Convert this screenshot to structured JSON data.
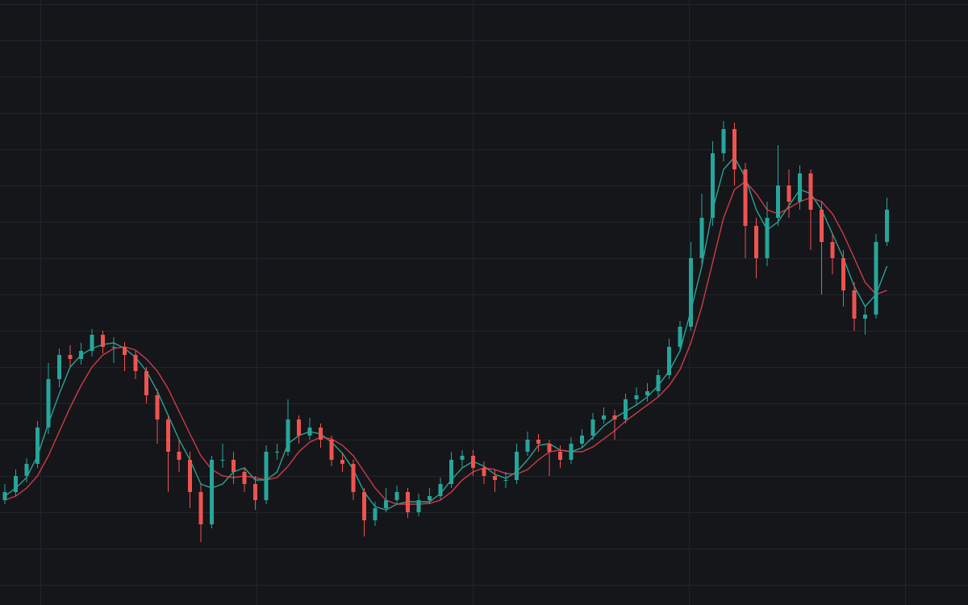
{
  "chart_data": {
    "type": "candlestick",
    "categories": [
      null,
      null,
      null,
      null,
      null,
      null,
      null,
      null,
      null,
      null,
      null,
      null,
      null,
      null,
      null,
      null,
      null,
      null,
      null,
      null,
      null,
      null,
      null,
      null,
      null,
      null,
      null,
      null,
      null,
      null,
      null,
      null,
      null,
      null,
      null,
      null,
      null,
      null,
      null,
      null,
      null,
      null,
      null,
      null,
      null,
      null,
      null,
      null,
      null,
      null,
      null,
      null,
      null,
      null,
      null,
      null,
      null,
      null,
      null,
      null,
      null,
      null,
      null,
      null,
      null,
      null,
      null,
      null,
      null,
      null,
      null,
      null,
      null,
      null,
      null,
      null,
      null,
      null,
      null,
      null,
      null,
      null
    ],
    "open": [
      130,
      140,
      160,
      175,
      220,
      280,
      310,
      305,
      315,
      335,
      320,
      320,
      310,
      290,
      260,
      230,
      190,
      180,
      140,
      100,
      180,
      180,
      165,
      150,
      130,
      190,
      190,
      230,
      210,
      220,
      205,
      180,
      175,
      140,
      105,
      120,
      130,
      140,
      115,
      130,
      135,
      150,
      180,
      185,
      170,
      160,
      155,
      155,
      190,
      205,
      200,
      190,
      180,
      200,
      210,
      230,
      235,
      230,
      255,
      260,
      265,
      285,
      320,
      345,
      430,
      480,
      560,
      590,
      540,
      470,
      430,
      480,
      520,
      500,
      535,
      490,
      450,
      430,
      390,
      355,
      360,
      450
    ],
    "high": [
      150,
      168,
      182,
      228,
      300,
      318,
      322,
      325,
      342,
      340,
      332,
      326,
      315,
      295,
      268,
      235,
      205,
      190,
      150,
      185,
      200,
      190,
      170,
      160,
      198,
      200,
      255,
      235,
      232,
      225,
      210,
      188,
      180,
      145,
      128,
      145,
      148,
      145,
      138,
      145,
      158,
      190,
      192,
      192,
      178,
      168,
      165,
      200,
      215,
      212,
      205,
      198,
      208,
      218,
      238,
      245,
      242,
      262,
      270,
      275,
      292,
      330,
      352,
      450,
      510,
      575,
      600,
      598,
      548,
      480,
      500,
      570,
      540,
      545,
      540,
      500,
      460,
      440,
      400,
      370,
      460,
      505
    ],
    "low": [
      125,
      135,
      152,
      170,
      212,
      270,
      296,
      298,
      308,
      312,
      300,
      290,
      280,
      250,
      200,
      140,
      165,
      120,
      78,
      95,
      170,
      150,
      140,
      118,
      125,
      180,
      185,
      200,
      205,
      195,
      172,
      165,
      130,
      85,
      98,
      115,
      125,
      108,
      110,
      125,
      130,
      145,
      170,
      160,
      150,
      140,
      145,
      150,
      185,
      190,
      160,
      170,
      175,
      195,
      205,
      225,
      205,
      225,
      248,
      252,
      258,
      280,
      315,
      340,
      420,
      470,
      550,
      520,
      430,
      405,
      420,
      470,
      480,
      490,
      440,
      385,
      410,
      370,
      340,
      335,
      355,
      445
    ],
    "close": [
      140,
      160,
      175,
      220,
      280,
      310,
      305,
      315,
      335,
      320,
      320,
      310,
      290,
      260,
      230,
      190,
      180,
      140,
      100,
      180,
      180,
      165,
      150,
      130,
      190,
      190,
      230,
      210,
      220,
      205,
      180,
      175,
      140,
      105,
      120,
      130,
      140,
      115,
      130,
      135,
      150,
      180,
      185,
      170,
      160,
      155,
      155,
      190,
      205,
      200,
      190,
      180,
      200,
      210,
      230,
      235,
      230,
      255,
      260,
      265,
      285,
      320,
      345,
      430,
      480,
      560,
      590,
      540,
      470,
      430,
      480,
      520,
      500,
      535,
      490,
      450,
      430,
      390,
      355,
      360,
      450,
      490
    ],
    "up_color": "#26a69a",
    "down_color": "#ef5350",
    "series": [
      {
        "color": "#2bb3a0",
        "values": [
          135,
          145,
          158,
          185,
          225,
          262,
          295,
          310,
          318,
          323,
          325,
          318,
          307,
          290,
          265,
          235,
          205,
          180,
          150,
          145,
          150,
          165,
          170,
          155,
          155,
          165,
          200,
          210,
          215,
          212,
          202,
          188,
          168,
          140,
          122,
          118,
          125,
          128,
          128,
          128,
          138,
          155,
          170,
          178,
          172,
          162,
          157,
          165,
          180,
          198,
          200,
          192,
          190,
          195,
          208,
          222,
          232,
          240,
          248,
          258,
          272,
          290,
          315,
          365,
          420,
          490,
          540,
          555,
          530,
          490,
          465,
          475,
          495,
          515,
          510,
          490,
          460,
          430,
          395,
          370,
          385,
          420
        ]
      },
      {
        "color": "#e0404f",
        "values": [
          130,
          135,
          145,
          160,
          185,
          215,
          245,
          272,
          295,
          310,
          318,
          320,
          316,
          305,
          290,
          268,
          240,
          212,
          185,
          168,
          160,
          158,
          160,
          158,
          155,
          158,
          172,
          190,
          202,
          208,
          206,
          198,
          185,
          165,
          145,
          130,
          125,
          125,
          125,
          126,
          130,
          140,
          155,
          165,
          170,
          168,
          163,
          162,
          168,
          180,
          190,
          192,
          190,
          190,
          196,
          206,
          216,
          228,
          238,
          248,
          258,
          272,
          292,
          325,
          370,
          425,
          480,
          515,
          525,
          510,
          490,
          485,
          492,
          500,
          505,
          500,
          485,
          460,
          430,
          400,
          385,
          390
        ]
      }
    ],
    "ylim": [
      0,
      750
    ],
    "grid": true
  }
}
